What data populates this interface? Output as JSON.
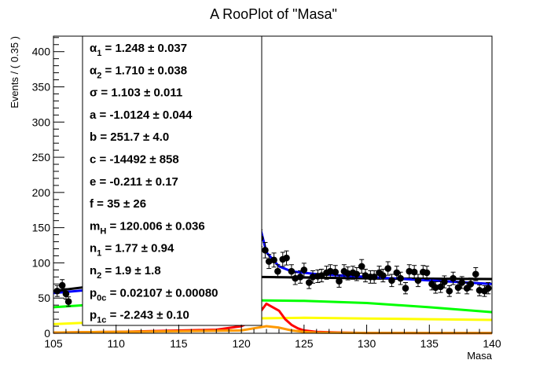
{
  "chart_data": {
    "type": "scatter",
    "title": "A RooPlot of \"Masa\"",
    "xlabel": "Masa",
    "ylabel": "Events / ( 0.35 )",
    "xlim": [
      105,
      140
    ],
    "ylim": [
      0,
      422
    ],
    "x_ticks": [
      105,
      110,
      115,
      120,
      125,
      130,
      135,
      140
    ],
    "y_ticks": [
      0,
      50,
      100,
      150,
      200,
      250,
      300,
      350,
      400
    ],
    "x_tick_labels": [
      "105",
      "110",
      "115",
      "120",
      "125",
      "130",
      "135",
      "140"
    ],
    "y_tick_labels": [
      "0",
      "50",
      "100",
      "150",
      "200",
      "250",
      "300",
      "350",
      "400"
    ],
    "grid": false,
    "legend_position": "top-left",
    "params": [
      {
        "sym": "α",
        "sub": "1",
        "text": " =  1.248  ± 0.037"
      },
      {
        "sym": "α",
        "sub": "2",
        "text": " =  1.710  ± 0.038"
      },
      {
        "sym": "σ",
        "sub": "",
        "text": " =  1.103  ± 0.011"
      },
      {
        "sym": "a",
        "sub": "",
        "text": " = -1.0124  ± 0.044"
      },
      {
        "sym": "b",
        "sub": "",
        "text": " =  251.7  ± 4.0"
      },
      {
        "sym": "c",
        "sub": "",
        "text": " = -14492  ± 858"
      },
      {
        "sym": "e",
        "sub": "",
        "text": " = -0.211  ± 0.17"
      },
      {
        "sym": "f",
        "sub": "",
        "text": " =  35  ± 26"
      },
      {
        "sym": "m",
        "sub": "H",
        "text": " =  120.006  ± 0.036"
      },
      {
        "sym": "n",
        "sub": "1",
        "text": " =  1.77  ± 0.94"
      },
      {
        "sym": "n",
        "sub": "2",
        "text": " =  1.9  ± 1.8"
      },
      {
        "sym": "p",
        "sub": "0c",
        "text": " =  0.02107  ± 0.00080"
      },
      {
        "sym": "p",
        "sub": "1c",
        "text": " = -2.243  ± 0.10"
      }
    ],
    "data_points": {
      "x": [
        121.5,
        121.9,
        122.2,
        122.6,
        122.9,
        123.3,
        123.6,
        124.0,
        124.3,
        124.7,
        125.0,
        125.4,
        125.7,
        126.1,
        126.4,
        126.8,
        127.1,
        127.5,
        127.8,
        128.2,
        128.5,
        128.9,
        129.2,
        129.6,
        129.9,
        130.3,
        130.6,
        131.0,
        131.3,
        131.7,
        132.0,
        132.4,
        132.7,
        133.1,
        133.4,
        133.8,
        134.1,
        134.5,
        134.8,
        135.2,
        135.5,
        135.9,
        136.2,
        136.6,
        136.9,
        137.3,
        137.6,
        138.0,
        138.3,
        138.7,
        139.0,
        139.4,
        139.7,
        106.2,
        106.0,
        105.7,
        105.3
      ],
      "y": [
        135,
        118,
        102,
        104,
        88,
        105,
        107,
        88,
        78,
        80,
        90,
        72,
        80,
        81,
        82,
        86,
        88,
        87,
        74,
        88,
        85,
        86,
        84,
        95,
        82,
        80,
        80,
        86,
        82,
        92,
        75,
        86,
        78,
        64,
        88,
        87,
        75,
        87,
        86,
        70,
        65,
        66,
        73,
        60,
        78,
        65,
        72,
        64,
        70,
        84,
        61,
        60,
        64,
        45,
        56,
        68,
        60
      ],
      "errors": [
        12,
        11,
        10,
        10,
        9.4,
        10,
        10,
        9.4,
        8.8,
        8.9,
        9.5,
        8.5,
        8.9,
        9,
        9,
        9.3,
        9.4,
        9.3,
        8.6,
        9.4,
        9.2,
        9.3,
        9.2,
        9.7,
        9,
        8.9,
        8.9,
        9.3,
        9,
        9.6,
        8.7,
        9.3,
        8.8,
        8,
        9.4,
        9.3,
        8.7,
        9.3,
        9.3,
        8.4,
        8.1,
        8.1,
        8.5,
        7.7,
        8.8,
        8.1,
        8.5,
        8,
        8.4,
        9.2,
        7.8,
        7.7,
        8,
        6.7,
        7.5,
        8.2,
        7.7
      ]
    },
    "series": [
      {
        "color": "#000000",
        "x": [
          105,
          110,
          121,
          130,
          140
        ],
        "y": [
          60,
          71,
          80,
          78,
          77
        ]
      },
      {
        "color": "#0000ff",
        "x": [
          105,
          110,
          116,
          119,
          120,
          120.6,
          121.5,
          122,
          123,
          124,
          126,
          130,
          135,
          140
        ],
        "y": [
          57,
          65,
          88,
          125,
          160,
          188,
          150,
          115,
          95,
          88,
          84,
          80,
          75,
          70
        ]
      },
      {
        "color": "#00ff00",
        "x": [
          105,
          110,
          115,
          120,
          125,
          130,
          135,
          140
        ],
        "y": [
          37,
          43,
          46,
          47,
          46,
          43,
          37,
          30
        ]
      },
      {
        "color": "#ffff00",
        "x": [
          105,
          110,
          115,
          120,
          125,
          130,
          135,
          140
        ],
        "y": [
          13,
          17,
          19,
          21,
          22,
          21,
          20,
          19
        ]
      },
      {
        "color": "#ff0000",
        "x": [
          105,
          110,
          118,
          120,
          121,
          122,
          123,
          123.5,
          124,
          124.5,
          125,
          126,
          128,
          130,
          135,
          140
        ],
        "y": [
          1,
          2,
          5,
          10,
          18,
          42,
          32,
          20,
          12,
          7,
          4,
          2,
          1,
          0.5,
          0.3,
          0.2
        ]
      },
      {
        "color": "#ff9900",
        "x": [
          105,
          110,
          120,
          121,
          122,
          123,
          124,
          125,
          126,
          130,
          140
        ],
        "y": [
          1,
          2,
          4,
          7,
          10,
          8,
          4,
          2,
          1,
          0.5,
          0.2
        ]
      }
    ]
  }
}
